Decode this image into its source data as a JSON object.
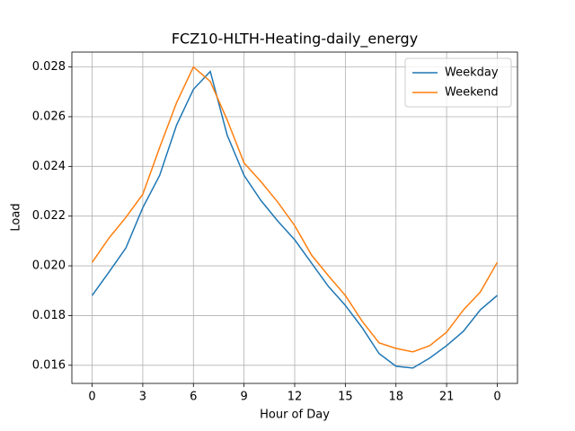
{
  "chart_data": {
    "type": "line",
    "title": "FCZ10-HLTH-Heating-daily_energy",
    "xlabel": "Hour of Day",
    "ylabel": "Load",
    "x": [
      0,
      1,
      2,
      3,
      4,
      5,
      6,
      7,
      8,
      9,
      10,
      11,
      12,
      13,
      14,
      15,
      16,
      17,
      18,
      19,
      20,
      21,
      22,
      23,
      24
    ],
    "series": [
      {
        "name": "Weekday",
        "color": "#1f77b4",
        "values": [
          0.01881,
          0.01975,
          0.02072,
          0.02234,
          0.02364,
          0.02566,
          0.0271,
          0.02782,
          0.02526,
          0.02364,
          0.02263,
          0.0218,
          0.02105,
          0.02011,
          0.01917,
          0.01841,
          0.01751,
          0.01647,
          0.01596,
          0.01589,
          0.01629,
          0.01679,
          0.01737,
          0.01823,
          0.01881
        ]
      },
      {
        "name": "Weekend",
        "color": "#ff7f0e",
        "values": [
          0.02014,
          0.02112,
          0.02195,
          0.02288,
          0.02476,
          0.02656,
          0.028,
          0.02742,
          0.02587,
          0.02414,
          0.02339,
          0.02256,
          0.02162,
          0.02043,
          0.0196,
          0.01881,
          0.01777,
          0.0169,
          0.01668,
          0.01654,
          0.01679,
          0.01733,
          0.01823,
          0.01895,
          0.02014
        ]
      }
    ],
    "xlim": [
      -1.2,
      25.2
    ],
    "xticks": [
      0,
      3,
      6,
      9,
      12,
      15,
      18,
      21,
      {
        "value": 24,
        "label": "0"
      }
    ],
    "ylim": [
      0.01527,
      0.0286
    ],
    "yticks": [
      0.016,
      0.018,
      {
        "value": 0.02,
        "label": "0.020"
      },
      0.022,
      0.024,
      0.026,
      0.028
    ],
    "grid": true,
    "legend": "upper-right"
  }
}
